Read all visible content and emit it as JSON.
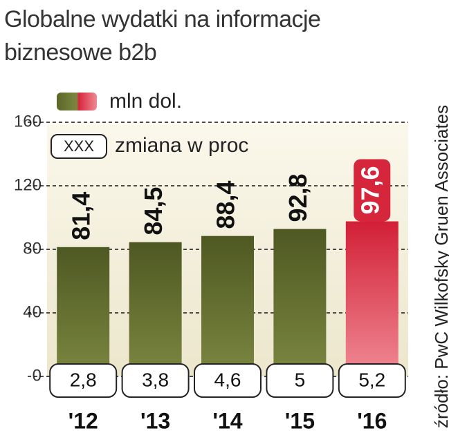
{
  "chart_data": {
    "type": "bar",
    "title": "Globalne wydatki na informacje biznesowe b2b",
    "source": "źródło: PwC Wilkofsky Gruen Associates",
    "categories": [
      "'12",
      "'13",
      "'14",
      "'15",
      "'16"
    ],
    "series": [
      {
        "name": "mln dol.",
        "values": [
          81.4,
          84.5,
          88.4,
          92.8,
          97.6
        ],
        "value_labels": [
          "81,4",
          "84,5",
          "88,4",
          "92,8",
          "97,6"
        ],
        "colors": [
          "#5b6629",
          "#5b6629",
          "#5b6629",
          "#5b6629",
          "#d6263c"
        ]
      }
    ],
    "change": {
      "name": "zmiana w proc",
      "legend_sample": "XXX",
      "values": [
        2.8,
        3.8,
        4.6,
        5,
        5.2
      ],
      "value_labels": [
        "2,8",
        "3,8",
        "4,6",
        "5",
        "5,2"
      ]
    },
    "ylim": [
      0,
      160
    ],
    "yticks": [
      0,
      40,
      80,
      120,
      160
    ],
    "grid": true
  }
}
